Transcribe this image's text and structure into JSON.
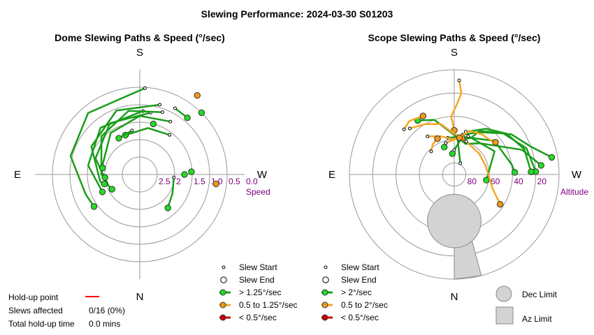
{
  "title": "Slewing Performance: 2024-03-30 S01203",
  "colors": {
    "fast": "#1a9e1a",
    "fast_marker": "#22dd22",
    "medium": "#f5a623",
    "medium_marker": "#f09a1a",
    "slow": "#cc0000",
    "holdup": "#ff0000",
    "grid": "#999999",
    "limit_fill": "#d3d3d3",
    "axis_label": "#800080"
  },
  "dome": {
    "subtitle": "Dome Slewing Paths & Speed (°/sec)",
    "dirs": {
      "top": "S",
      "bottom": "N",
      "left": "E",
      "right": "W"
    },
    "radial_label": "Speed",
    "tick_labels": [
      "2.5",
      "2",
      "1.5",
      "1.0",
      "0.5",
      "0.0"
    ],
    "legend": [
      {
        "kind": "start",
        "label": "Slew Start"
      },
      {
        "kind": "end",
        "label": "Slew End"
      },
      {
        "kind": "fast",
        "label": "> 1.25°/sec"
      },
      {
        "kind": "medium",
        "label": "0.5 to 1.25°/sec"
      },
      {
        "kind": "slow",
        "label": "< 0.5°/sec"
      }
    ]
  },
  "scope": {
    "subtitle": "Scope Slewing Paths & Speed (°/sec)",
    "dirs": {
      "top": "S",
      "bottom": "N",
      "left": "E",
      "right": "W"
    },
    "radial_label": "Altitude",
    "tick_labels": [
      "80",
      "60",
      "40",
      "20"
    ],
    "legend": [
      {
        "kind": "start",
        "label": "Slew Start"
      },
      {
        "kind": "end",
        "label": "Slew End"
      },
      {
        "kind": "fast",
        "label": "> 2°/sec"
      },
      {
        "kind": "medium",
        "label": "0.5 to 2°/sec"
      },
      {
        "kind": "slow",
        "label": "< 0.5°/sec"
      }
    ],
    "limits": [
      {
        "kind": "dec",
        "label": "Dec Limit"
      },
      {
        "kind": "az",
        "label": "Az Limit"
      }
    ]
  },
  "holdup": {
    "point_label": "Hold-up point",
    "slews_label": "Slews affected",
    "slews_value": "0/16 (0%)",
    "total_label": "Total hold-up time",
    "total_value": "0.0 mins"
  },
  "chart_data": [
    {
      "type": "scatter",
      "projection": "polar",
      "radial_quantity": "speed",
      "theta_unit": "deg_from_S_towards_W",
      "rlim": [
        3.0,
        0.0
      ],
      "grid": true,
      "paths": [
        {
          "speed_class": "fast",
          "points": [
            [
              3.5,
              0.52
            ],
            [
              -40,
              0.7
            ],
            [
              -75,
              0.95
            ],
            [
              -110,
              1.35
            ],
            [
              -125,
              1.4
            ]
          ]
        },
        {
          "speed_class": "fast",
          "points": [
            [
              3,
              1.18
            ],
            [
              -40,
              1.25
            ],
            [
              -80,
              1.5
            ],
            [
              -115,
              1.82
            ]
          ]
        },
        {
          "speed_class": "fast",
          "points": [
            [
              10,
              1.2
            ],
            [
              -30,
              1.3
            ],
            [
              -70,
              1.65
            ],
            [
              -110,
              2.05
            ],
            [
              -118,
              2.1
            ]
          ]
        },
        {
          "speed_class": "fast",
          "points": [
            [
              16,
              0.92
            ],
            [
              -20,
              1.05
            ],
            [
              -60,
              1.4
            ],
            [
              -100,
              1.85
            ],
            [
              -105,
              1.95
            ]
          ]
        },
        {
          "speed_class": "fast",
          "points": [
            [
              20,
              1.1
            ],
            [
              -10,
              1.15
            ],
            [
              -45,
              1.45
            ],
            [
              -90,
              1.9
            ],
            [
              -95,
              2.0
            ]
          ]
        },
        {
          "speed_class": "fast",
          "points": [
            [
              30,
              1.25
            ],
            [
              0,
              1.32
            ],
            [
              -35,
              1.55
            ],
            [
              -75,
              1.9
            ],
            [
              -80,
              1.92
            ]
          ]
        },
        {
          "speed_class": "fast",
          "points": [
            [
              37,
              1.58
            ],
            [
              10,
              1.65
            ],
            [
              -20,
              1.8
            ]
          ]
        },
        {
          "speed_class": "fast",
          "points": [
            [
              95,
              2.02
            ],
            [
              120,
              1.92
            ],
            [
              140,
              1.75
            ]
          ]
        },
        {
          "speed_class": "fast",
          "points": [
            [
              -10,
              1.72
            ],
            [
              -30,
              1.8
            ]
          ]
        },
        {
          "speed_class": "fast",
          "points": [
            [
              28,
              0.85
            ],
            [
              40,
              0.88
            ]
          ]
        }
      ],
      "isolated_points": [
        {
          "speed_class": "medium",
          "theta": 36,
          "r": 0.2
        },
        {
          "speed_class": "medium",
          "theta": 97,
          "r": 0.8
        },
        {
          "speed_class": "fast",
          "theta": 15,
          "r": 1.5
        },
        {
          "speed_class": "fast",
          "theta": 45,
          "r": 0.5
        },
        {
          "speed_class": "fast",
          "theta": 87,
          "r": 1.52
        },
        {
          "speed_class": "fast",
          "theta": 90,
          "r": 1.72
        }
      ]
    },
    {
      "type": "scatter",
      "projection": "polar",
      "radial_quantity": "altitude",
      "theta_unit": "deg_from_S_towards_W",
      "rlim": [
        90,
        0
      ],
      "grid": true,
      "paths": [
        {
          "speed_class": "fast",
          "points": [
            [
              28,
              79
            ],
            [
              5,
              58
            ],
            [
              -20,
              40
            ],
            [
              -34,
              34
            ]
          ]
        },
        {
          "speed_class": "fast",
          "points": [
            [
              0,
              69
            ],
            [
              10,
              60
            ],
            [
              25,
              55
            ],
            [
              30,
              47
            ],
            [
              40,
              42
            ],
            [
              55,
              30
            ],
            [
              70,
              20
            ],
            [
              80,
              5
            ]
          ]
        },
        {
          "speed_class": "fast",
          "points": [
            [
              4,
              57
            ],
            [
              20,
              62
            ],
            [
              40,
              55
            ],
            [
              70,
              28
            ],
            [
              84,
              15
            ]
          ]
        },
        {
          "speed_class": "fast",
          "points": [
            [
              12,
              55
            ],
            [
              30,
              48
            ],
            [
              50,
              35
            ],
            [
              70,
              24
            ],
            [
              88,
              20
            ]
          ]
        },
        {
          "speed_class": "fast",
          "points": [
            [
              15,
              52
            ],
            [
              35,
              42
            ],
            [
              52,
              33
            ],
            [
              70,
              26
            ],
            [
              88,
              24
            ]
          ]
        },
        {
          "speed_class": "fast",
          "points": [
            [
              -10,
              58
            ],
            [
              10,
              57
            ],
            [
              50,
              45
            ],
            [
              80,
              40
            ],
            [
              88,
              38
            ]
          ]
        },
        {
          "speed_class": "fast",
          "points": [
            [
              20,
              55
            ],
            [
              60,
              50
            ],
            [
              100,
              62
            ]
          ]
        },
        {
          "speed_class": "medium",
          "points": [
            [
              3,
              9
            ],
            [
              5,
              20
            ],
            [
              2,
              30
            ],
            [
              -3,
              40
            ],
            [
              0,
              52
            ]
          ]
        },
        {
          "speed_class": "medium",
          "points": [
            [
              -44,
              35
            ],
            [
              -30,
              40
            ],
            [
              -15,
              45
            ],
            [
              0,
              55
            ],
            [
              12,
              58
            ]
          ]
        },
        {
          "speed_class": "medium",
          "points": [
            [
              -48,
              32
            ],
            [
              -40,
              30
            ],
            [
              -28,
              33
            ]
          ]
        },
        {
          "speed_class": "medium",
          "points": [
            [
              20,
              60
            ],
            [
              50,
              62
            ],
            [
              75,
              62
            ],
            [
              102,
              58
            ],
            [
              110,
              55
            ],
            [
              123,
              43
            ]
          ]
        },
        {
          "speed_class": "medium",
          "points": [
            [
              -15,
              62
            ],
            [
              0,
              60
            ],
            [
              20,
              50
            ],
            [
              35,
              48
            ],
            [
              48,
              47
            ],
            [
              52,
              45
            ]
          ]
        },
        {
          "speed_class": "medium",
          "points": [
            [
              -35,
              50
            ],
            [
              -20,
              55
            ],
            [
              0,
              60
            ],
            [
              8,
              58
            ]
          ]
        },
        {
          "speed_class": "medium",
          "points": [
            [
              -45,
              62
            ],
            [
              -35,
              58
            ],
            [
              -25,
              56
            ]
          ]
        }
      ],
      "isolated_points": [
        {
          "speed_class": "fast",
          "theta": -5,
          "r": 72
        },
        {
          "speed_class": "fast",
          "theta": -20,
          "r": 65
        }
      ],
      "limits": {
        "dec_limit": {
          "theta": 180,
          "alt_center": 50,
          "alt_radius": 23
        },
        "az_limit": {
          "theta_from": 165,
          "theta_to": 180,
          "alt_from": 62,
          "alt_to": 0
        }
      }
    }
  ]
}
